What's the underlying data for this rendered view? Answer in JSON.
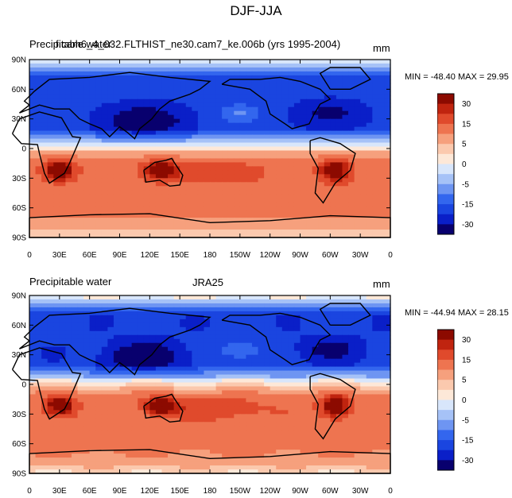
{
  "title": "DJF-JJA",
  "colors": {
    "levels": [
      "#08006e",
      "#0a1fc8",
      "#1a45e0",
      "#3366ee",
      "#6e95f2",
      "#a6c2f7",
      "#d8e6fb",
      "#fde8d8",
      "#fbc9ae",
      "#f6a07d",
      "#ee7450",
      "#e04a2c",
      "#c0240f",
      "#8c0a00"
    ],
    "land": "#000000"
  },
  "colorbar": {
    "labels": [
      "30",
      "15",
      "5",
      "0",
      "-5",
      "-15",
      "-30"
    ]
  },
  "panels": [
    {
      "left_title": "Precipitable water",
      "center_title": "f.cam6_4_032.FLTHIST_ne30.cam7_ke.006b (yrs 1995-2004)",
      "units": "mm",
      "stats": "MIN = -48.40 MAX =  29.95"
    },
    {
      "left_title": "Precipitable water",
      "center_title": "JRA25",
      "units": "mm",
      "stats": "MIN = -44.94 MAX =  28.15"
    }
  ],
  "chart_data": [
    {
      "type": "heatmap",
      "title": "f.cam6_4_032.FLTHIST_ne30.cam7_ke.006b (yrs 1995-2004)",
      "variable": "Precipitable water",
      "units": "mm",
      "contour_levels": [
        -30,
        -25,
        -20,
        -15,
        -10,
        -5,
        -2,
        0,
        2,
        5,
        10,
        15,
        20,
        25,
        30
      ],
      "xticks": [
        "0",
        "30E",
        "60E",
        "90E",
        "120E",
        "150E",
        "180",
        "150W",
        "120W",
        "90W",
        "60W",
        "30W",
        "0"
      ],
      "yticks": [
        "90N",
        "60N",
        "30N",
        "0",
        "30S",
        "60S",
        "90S"
      ],
      "xlim": [
        0,
        360
      ],
      "ylim": [
        -90,
        90
      ],
      "min": -48.4,
      "max": 29.95
    },
    {
      "type": "heatmap",
      "title": "JRA25",
      "variable": "Precipitable water",
      "units": "mm",
      "contour_levels": [
        -30,
        -25,
        -20,
        -15,
        -10,
        -5,
        -2,
        0,
        2,
        5,
        10,
        15,
        20,
        25,
        30
      ],
      "xticks": [
        "0",
        "30E",
        "60E",
        "90E",
        "120E",
        "150E",
        "180",
        "150W",
        "120W",
        "90W",
        "60W",
        "30W",
        "0"
      ],
      "yticks": [
        "90N",
        "60N",
        "30N",
        "0",
        "30S",
        "60S",
        "90S"
      ],
      "xlim": [
        0,
        360
      ],
      "ylim": [
        -90,
        90
      ],
      "min": -44.94,
      "max": 28.15
    }
  ]
}
